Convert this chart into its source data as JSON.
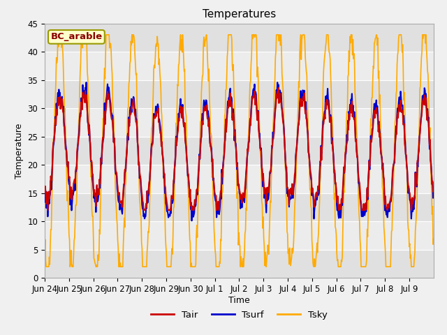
{
  "title": "Temperatures",
  "xlabel": "Time",
  "ylabel": "Temperature",
  "ylim": [
    0,
    45
  ],
  "n_days": 16,
  "legend_label": "BC_arable",
  "series_labels": [
    "Tair",
    "Tsurf",
    "Tsky"
  ],
  "series_colors": [
    "#cc0000",
    "#0000cc",
    "#ffaa00"
  ],
  "xtick_labels": [
    "Jun 24",
    "Jun 25",
    "Jun 26",
    "Jun 27",
    "Jun 28",
    "Jun 29",
    "Jun 30",
    "Jul 1",
    "Jul 2",
    "Jul 3",
    "Jul 4",
    "Jul 5",
    "Jul 6",
    "Jul 7",
    "Jul 8",
    "Jul 9"
  ],
  "background_color": "#f0f0f0",
  "plot_bg_light": "#ececec",
  "plot_bg_dark": "#e0e0e0",
  "title_fontsize": 11,
  "label_fontsize": 9,
  "tick_fontsize": 8.5,
  "yticks": [
    0,
    5,
    10,
    15,
    20,
    25,
    30,
    35,
    40,
    45
  ]
}
